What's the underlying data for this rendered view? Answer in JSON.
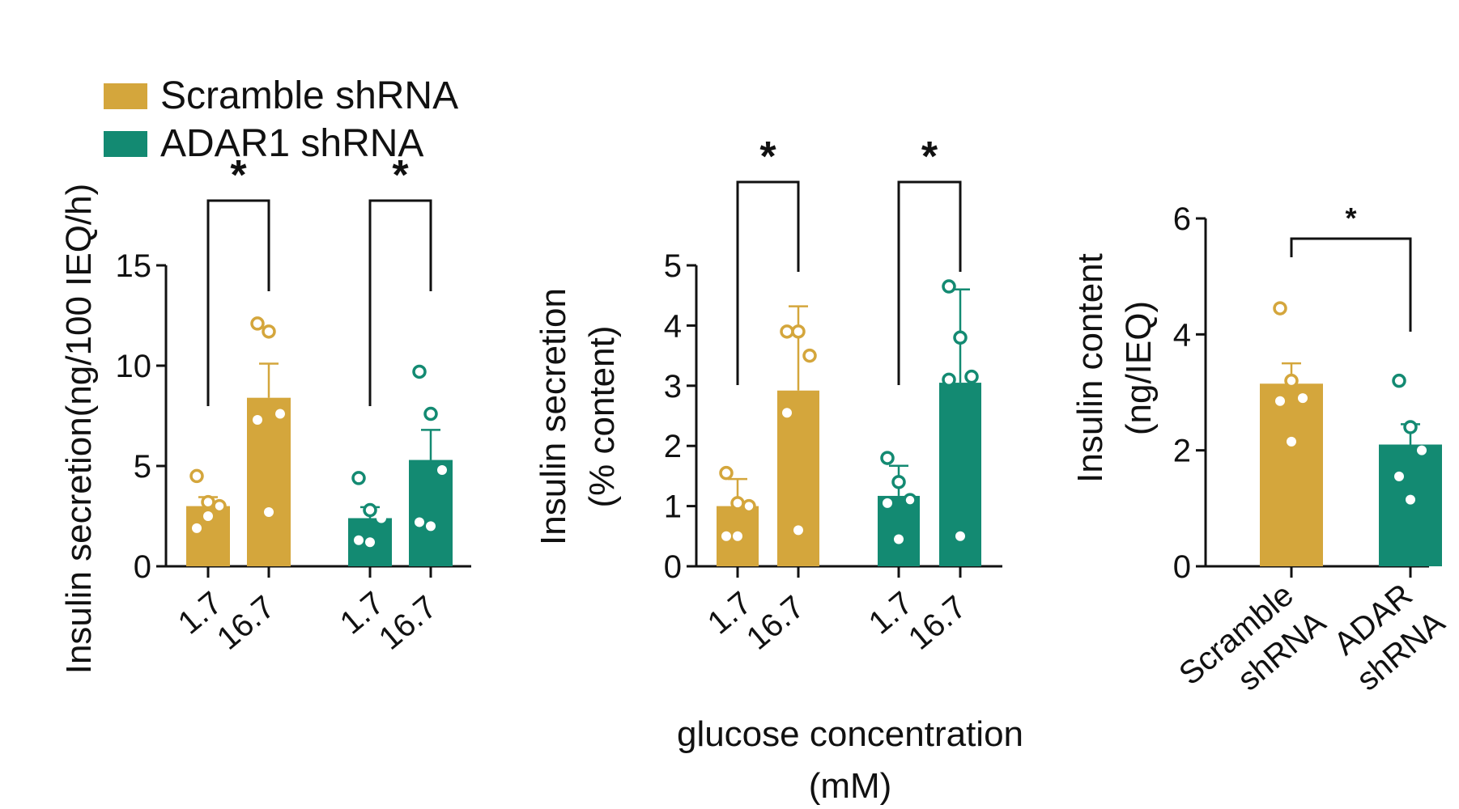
{
  "colors": {
    "scramble": "#D4A63C",
    "adar": "#138A72",
    "axis": "#111111"
  },
  "legend": [
    {
      "label": "Scramble shRNA",
      "color": "#D4A63C"
    },
    {
      "label": "ADAR1 shRNA",
      "color": "#138A72"
    }
  ],
  "shared_xlabel": [
    "glucose concentration",
    "(mM)"
  ],
  "chart_data": [
    {
      "type": "bar",
      "ylabel": "Insulin secretion(ng/100 IEQ/h)",
      "ylim": [
        0,
        15
      ],
      "yticks": [
        0,
        5,
        10,
        15
      ],
      "categories": [
        "1.7",
        "16.7",
        "1.7",
        "16.7"
      ],
      "bars": [
        {
          "group": "Scramble shRNA",
          "glucose": "1.7",
          "mean": 3.0,
          "sem": 0.45,
          "points": [
            {
              "y": 4.5,
              "open": true
            },
            {
              "y": 3.2,
              "open": true
            },
            {
              "y": 3.0,
              "open": true
            },
            {
              "y": 1.9,
              "open": false
            },
            {
              "y": 2.5,
              "open": false
            }
          ]
        },
        {
          "group": "Scramble shRNA",
          "glucose": "16.7",
          "mean": 8.4,
          "sem": 1.7,
          "points": [
            {
              "y": 12.1,
              "open": true
            },
            {
              "y": 11.7,
              "open": true
            },
            {
              "y": 7.6,
              "open": false
            },
            {
              "y": 7.3,
              "open": false
            },
            {
              "y": 2.7,
              "open": false
            }
          ]
        },
        {
          "group": "ADAR1 shRNA",
          "glucose": "1.7",
          "mean": 2.4,
          "sem": 0.55,
          "points": [
            {
              "y": 4.4,
              "open": true
            },
            {
              "y": 2.8,
              "open": true
            },
            {
              "y": 2.4,
              "open": false
            },
            {
              "y": 1.3,
              "open": false
            },
            {
              "y": 1.2,
              "open": false
            }
          ]
        },
        {
          "group": "ADAR1 shRNA",
          "glucose": "16.7",
          "mean": 5.3,
          "sem": 1.5,
          "points": [
            {
              "y": 9.7,
              "open": true
            },
            {
              "y": 7.6,
              "open": true
            },
            {
              "y": 4.8,
              "open": false
            },
            {
              "y": 2.2,
              "open": false
            },
            {
              "y": 2.0,
              "open": false
            }
          ]
        }
      ],
      "significance": [
        {
          "from": 0,
          "to": 1,
          "label": "*"
        },
        {
          "from": 2,
          "to": 3,
          "label": "*"
        }
      ]
    },
    {
      "type": "bar",
      "ylabel": [
        "Insulin secretion",
        "(% content)"
      ],
      "ylim": [
        0,
        5
      ],
      "yticks": [
        0,
        1,
        2,
        3,
        4,
        5
      ],
      "categories": [
        "1.7",
        "16.7",
        "1.7",
        "16.7"
      ],
      "bars": [
        {
          "group": "Scramble shRNA",
          "glucose": "1.7",
          "mean": 1.0,
          "sem": 0.45,
          "points": [
            {
              "y": 1.55,
              "open": true
            },
            {
              "y": 1.05,
              "open": true
            },
            {
              "y": 1.0,
              "open": true
            },
            {
              "y": 0.5,
              "open": false
            },
            {
              "y": 0.5,
              "open": false
            }
          ]
        },
        {
          "group": "Scramble shRNA",
          "glucose": "16.7",
          "mean": 2.92,
          "sem": 1.4,
          "points": [
            {
              "y": 3.9,
              "open": true
            },
            {
              "y": 3.9,
              "open": true
            },
            {
              "y": 3.5,
              "open": true
            },
            {
              "y": 2.55,
              "open": false
            },
            {
              "y": 0.6,
              "open": false
            }
          ]
        },
        {
          "group": "ADAR1 shRNA",
          "glucose": "1.7",
          "mean": 1.17,
          "sem": 0.5,
          "points": [
            {
              "y": 1.8,
              "open": true
            },
            {
              "y": 1.4,
              "open": true
            },
            {
              "y": 1.1,
              "open": true
            },
            {
              "y": 1.05,
              "open": false
            },
            {
              "y": 0.45,
              "open": false
            }
          ]
        },
        {
          "group": "ADAR1 shRNA",
          "glucose": "16.7",
          "mean": 3.05,
          "sem": 1.55,
          "points": [
            {
              "y": 4.65,
              "open": true
            },
            {
              "y": 3.8,
              "open": true
            },
            {
              "y": 3.15,
              "open": true
            },
            {
              "y": 3.1,
              "open": true
            },
            {
              "y": 0.5,
              "open": false
            }
          ]
        }
      ],
      "significance": [
        {
          "from": 0,
          "to": 1,
          "label": "*"
        },
        {
          "from": 2,
          "to": 3,
          "label": "*"
        }
      ]
    },
    {
      "type": "bar",
      "ylabel": [
        "Insulin content",
        "(ng/IEQ)"
      ],
      "ylim": [
        0,
        6
      ],
      "yticks": [
        0,
        2,
        4,
        6
      ],
      "categories": [
        "Scramble shRNA",
        "ADAR shRNA"
      ],
      "bars": [
        {
          "group": "Scramble shRNA",
          "mean": 3.15,
          "sem": 0.35,
          "points": [
            {
              "y": 4.45,
              "open": true
            },
            {
              "y": 3.2,
              "open": true
            },
            {
              "y": 2.9,
              "open": false
            },
            {
              "y": 2.85,
              "open": false
            },
            {
              "y": 2.15,
              "open": false
            }
          ]
        },
        {
          "group": "ADAR shRNA",
          "mean": 2.1,
          "sem": 0.35,
          "points": [
            {
              "y": 3.2,
              "open": true
            },
            {
              "y": 2.4,
              "open": true
            },
            {
              "y": 2.0,
              "open": false
            },
            {
              "y": 1.55,
              "open": false
            },
            {
              "y": 1.15,
              "open": false
            }
          ]
        }
      ],
      "significance": [
        {
          "from": 0,
          "to": 1,
          "label": "*"
        }
      ]
    }
  ]
}
